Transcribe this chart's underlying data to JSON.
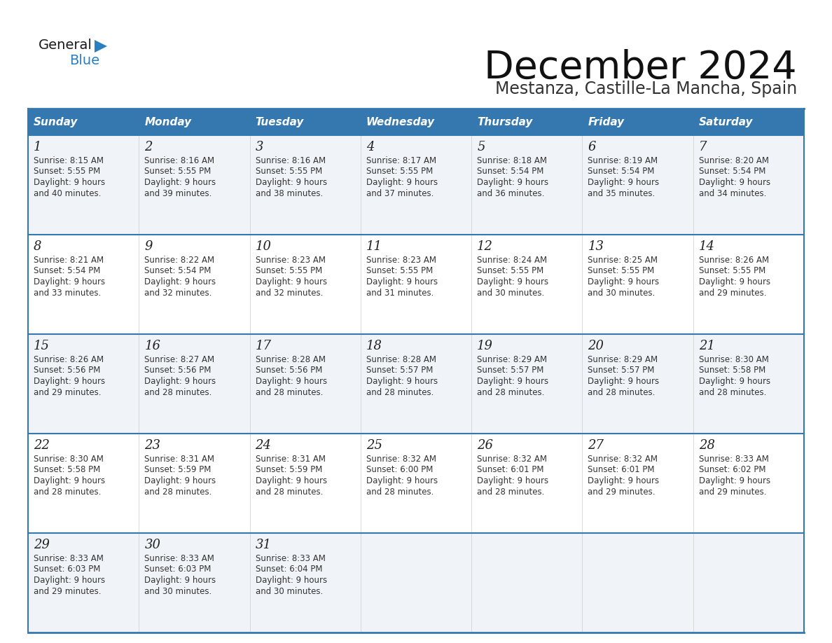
{
  "title": "December 2024",
  "subtitle": "Mestanza, Castille-La Mancha, Spain",
  "header_color": "#3578b0",
  "header_text_color": "#ffffff",
  "day_headers": [
    "Sunday",
    "Monday",
    "Tuesday",
    "Wednesday",
    "Thursday",
    "Friday",
    "Saturday"
  ],
  "weeks": [
    [
      {
        "day": 1,
        "sunrise": "8:15 AM",
        "sunset": "5:55 PM",
        "daylight": "9 hours and 40 minutes"
      },
      {
        "day": 2,
        "sunrise": "8:16 AM",
        "sunset": "5:55 PM",
        "daylight": "9 hours and 39 minutes"
      },
      {
        "day": 3,
        "sunrise": "8:16 AM",
        "sunset": "5:55 PM",
        "daylight": "9 hours and 38 minutes"
      },
      {
        "day": 4,
        "sunrise": "8:17 AM",
        "sunset": "5:55 PM",
        "daylight": "9 hours and 37 minutes"
      },
      {
        "day": 5,
        "sunrise": "8:18 AM",
        "sunset": "5:54 PM",
        "daylight": "9 hours and 36 minutes"
      },
      {
        "day": 6,
        "sunrise": "8:19 AM",
        "sunset": "5:54 PM",
        "daylight": "9 hours and 35 minutes"
      },
      {
        "day": 7,
        "sunrise": "8:20 AM",
        "sunset": "5:54 PM",
        "daylight": "9 hours and 34 minutes"
      }
    ],
    [
      {
        "day": 8,
        "sunrise": "8:21 AM",
        "sunset": "5:54 PM",
        "daylight": "9 hours and 33 minutes"
      },
      {
        "day": 9,
        "sunrise": "8:22 AM",
        "sunset": "5:54 PM",
        "daylight": "9 hours and 32 minutes"
      },
      {
        "day": 10,
        "sunrise": "8:23 AM",
        "sunset": "5:55 PM",
        "daylight": "9 hours and 32 minutes"
      },
      {
        "day": 11,
        "sunrise": "8:23 AM",
        "sunset": "5:55 PM",
        "daylight": "9 hours and 31 minutes"
      },
      {
        "day": 12,
        "sunrise": "8:24 AM",
        "sunset": "5:55 PM",
        "daylight": "9 hours and 30 minutes"
      },
      {
        "day": 13,
        "sunrise": "8:25 AM",
        "sunset": "5:55 PM",
        "daylight": "9 hours and 30 minutes"
      },
      {
        "day": 14,
        "sunrise": "8:26 AM",
        "sunset": "5:55 PM",
        "daylight": "9 hours and 29 minutes"
      }
    ],
    [
      {
        "day": 15,
        "sunrise": "8:26 AM",
        "sunset": "5:56 PM",
        "daylight": "9 hours and 29 minutes"
      },
      {
        "day": 16,
        "sunrise": "8:27 AM",
        "sunset": "5:56 PM",
        "daylight": "9 hours and 28 minutes"
      },
      {
        "day": 17,
        "sunrise": "8:28 AM",
        "sunset": "5:56 PM",
        "daylight": "9 hours and 28 minutes"
      },
      {
        "day": 18,
        "sunrise": "8:28 AM",
        "sunset": "5:57 PM",
        "daylight": "9 hours and 28 minutes"
      },
      {
        "day": 19,
        "sunrise": "8:29 AM",
        "sunset": "5:57 PM",
        "daylight": "9 hours and 28 minutes"
      },
      {
        "day": 20,
        "sunrise": "8:29 AM",
        "sunset": "5:57 PM",
        "daylight": "9 hours and 28 minutes"
      },
      {
        "day": 21,
        "sunrise": "8:30 AM",
        "sunset": "5:58 PM",
        "daylight": "9 hours and 28 minutes"
      }
    ],
    [
      {
        "day": 22,
        "sunrise": "8:30 AM",
        "sunset": "5:58 PM",
        "daylight": "9 hours and 28 minutes"
      },
      {
        "day": 23,
        "sunrise": "8:31 AM",
        "sunset": "5:59 PM",
        "daylight": "9 hours and 28 minutes"
      },
      {
        "day": 24,
        "sunrise": "8:31 AM",
        "sunset": "5:59 PM",
        "daylight": "9 hours and 28 minutes"
      },
      {
        "day": 25,
        "sunrise": "8:32 AM",
        "sunset": "6:00 PM",
        "daylight": "9 hours and 28 minutes"
      },
      {
        "day": 26,
        "sunrise": "8:32 AM",
        "sunset": "6:01 PM",
        "daylight": "9 hours and 28 minutes"
      },
      {
        "day": 27,
        "sunrise": "8:32 AM",
        "sunset": "6:01 PM",
        "daylight": "9 hours and 29 minutes"
      },
      {
        "day": 28,
        "sunrise": "8:33 AM",
        "sunset": "6:02 PM",
        "daylight": "9 hours and 29 minutes"
      }
    ],
    [
      {
        "day": 29,
        "sunrise": "8:33 AM",
        "sunset": "6:03 PM",
        "daylight": "9 hours and 29 minutes"
      },
      {
        "day": 30,
        "sunrise": "8:33 AM",
        "sunset": "6:03 PM",
        "daylight": "9 hours and 30 minutes"
      },
      {
        "day": 31,
        "sunrise": "8:33 AM",
        "sunset": "6:04 PM",
        "daylight": "9 hours and 30 minutes"
      },
      null,
      null,
      null,
      null
    ]
  ],
  "logo_general_color": "#1a1a1a",
  "logo_blue_color": "#2a7fc0",
  "border_color": "#3578b0",
  "row_colors": [
    "#f0f4f8",
    "#ffffff"
  ]
}
